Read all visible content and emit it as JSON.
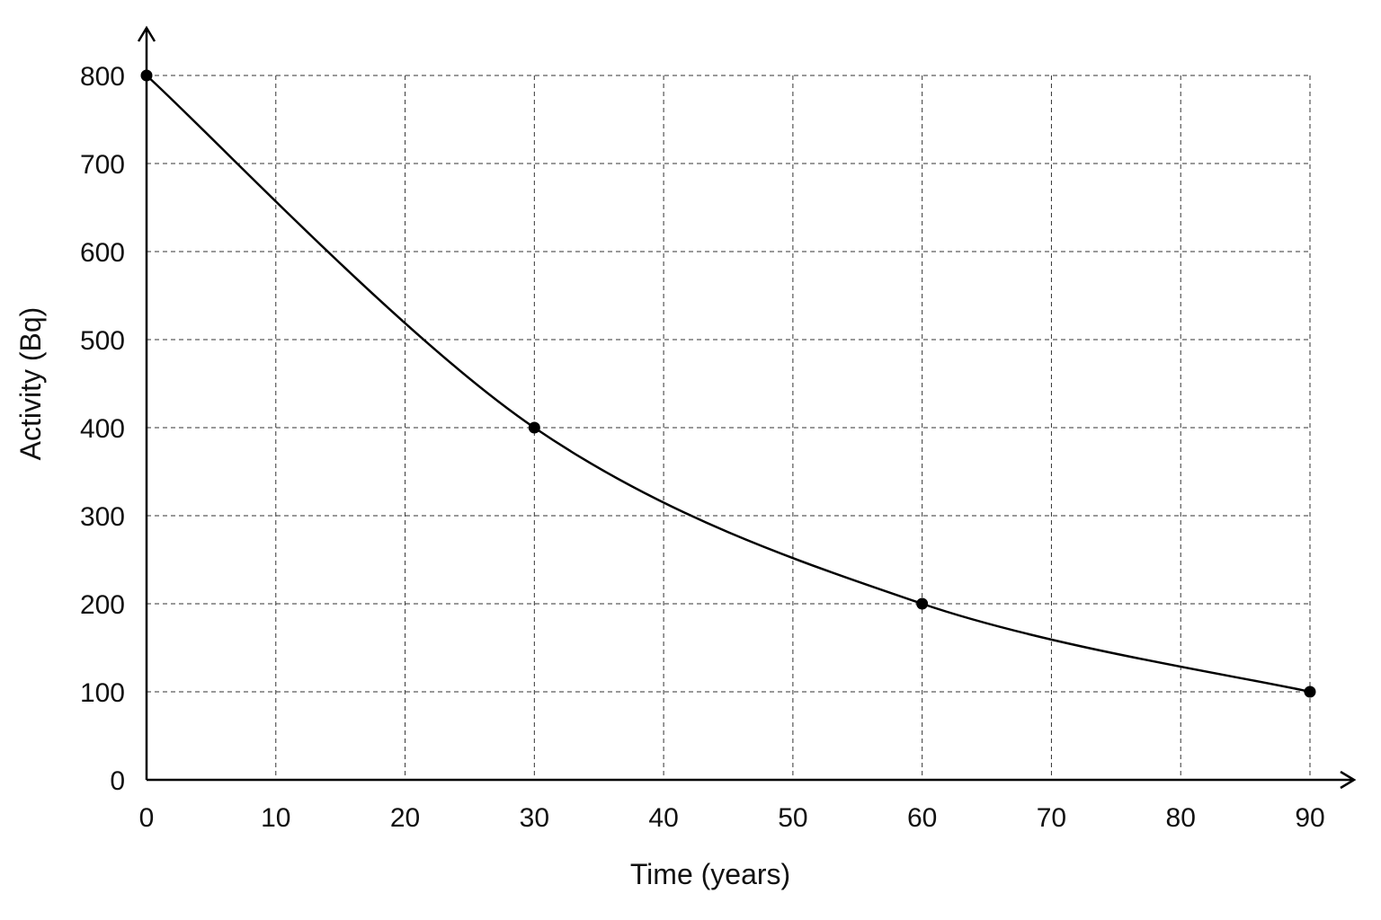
{
  "chart_data": {
    "type": "line",
    "title": "",
    "xlabel": "Time (years)",
    "ylabel": "Activity (Bq)",
    "xlim": [
      0,
      90
    ],
    "ylim": [
      0,
      800
    ],
    "xticks": [
      0,
      10,
      20,
      30,
      40,
      50,
      60,
      70,
      80,
      90
    ],
    "yticks": [
      0,
      100,
      200,
      300,
      400,
      500,
      600,
      700,
      800
    ],
    "grid": true,
    "grid_style": "dashed",
    "series": [
      {
        "x": [
          0,
          30,
          60,
          90
        ],
        "y": [
          800,
          400,
          200,
          100
        ],
        "markers": true,
        "color": "#000000"
      }
    ]
  }
}
